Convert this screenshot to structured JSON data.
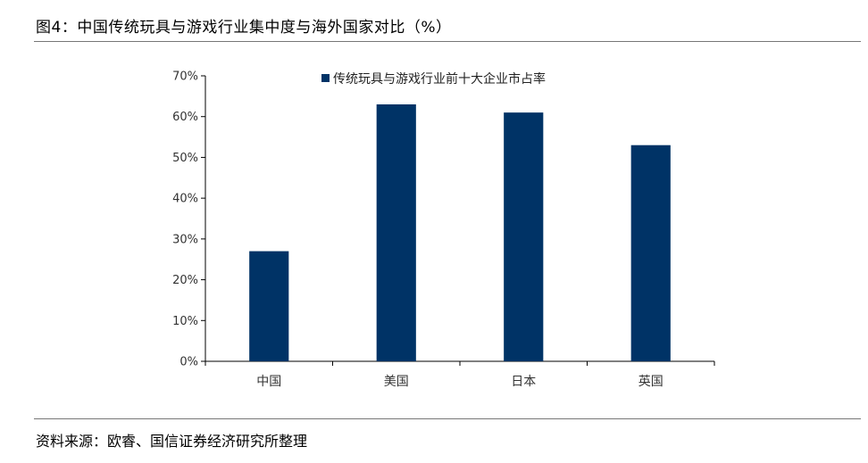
{
  "title": "图4：中国传统玩具与游戏行业集中度与海外国家对比（%）",
  "source": "资料来源：欧睿、国信证券经济研究所整理",
  "chart_data": {
    "type": "bar",
    "categories": [
      "中国",
      "美国",
      "日本",
      "英国"
    ],
    "series": [
      {
        "name": "传统玩具与游戏行业前十大企业市占率",
        "values": [
          27,
          63,
          61,
          53
        ],
        "color": "#003366"
      }
    ],
    "ylim": [
      0,
      70
    ],
    "yticks": [
      0,
      10,
      20,
      30,
      40,
      50,
      60,
      70
    ],
    "ytick_labels": [
      "0%",
      "10%",
      "20%",
      "30%",
      "40%",
      "50%",
      "60%",
      "70%"
    ],
    "grid": false,
    "legend": "top-center"
  }
}
